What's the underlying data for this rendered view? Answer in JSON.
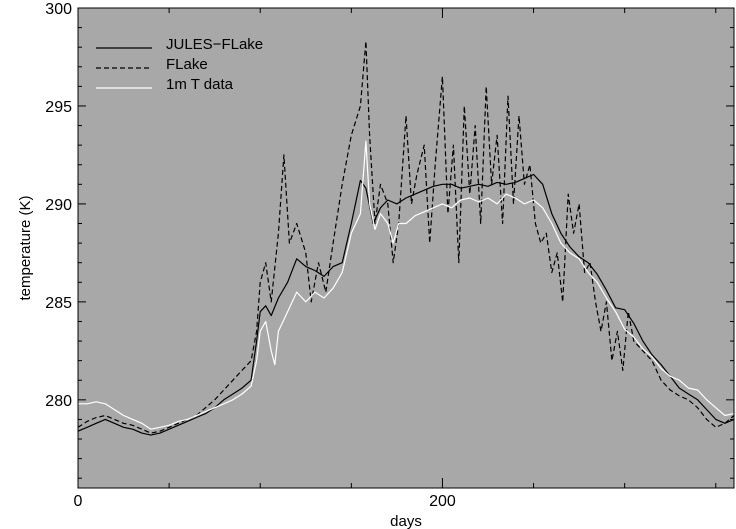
{
  "chart_data": {
    "type": "line",
    "title": "",
    "xlabel": "days",
    "ylabel": "temperature (K)",
    "xlim": [
      0,
      360
    ],
    "ylim": [
      275.5,
      300
    ],
    "x_ticks": [
      0,
      200
    ],
    "x_tick_labels": [
      "0",
      "200"
    ],
    "y_ticks": [
      280,
      285,
      290,
      295,
      300
    ],
    "y_tick_labels": [
      "280",
      "285",
      "290",
      "295",
      "300"
    ],
    "grid": false,
    "background_color": "#a8a8a8",
    "legend_position": "top-left",
    "series": [
      {
        "name": "JULES−FLake",
        "style": "solid",
        "color": "#000000",
        "points": [
          [
            0,
            278.4
          ],
          [
            5,
            278.6
          ],
          [
            10,
            278.8
          ],
          [
            15,
            279.0
          ],
          [
            20,
            278.8
          ],
          [
            25,
            278.6
          ],
          [
            30,
            278.5
          ],
          [
            35,
            278.3
          ],
          [
            40,
            278.2
          ],
          [
            45,
            278.3
          ],
          [
            50,
            278.5
          ],
          [
            55,
            278.7
          ],
          [
            60,
            278.9
          ],
          [
            65,
            279.1
          ],
          [
            70,
            279.3
          ],
          [
            75,
            279.6
          ],
          [
            80,
            280.0
          ],
          [
            85,
            280.3
          ],
          [
            90,
            280.6
          ],
          [
            95,
            281.0
          ],
          [
            98,
            283.0
          ],
          [
            100,
            284.5
          ],
          [
            103,
            284.8
          ],
          [
            106,
            284.3
          ],
          [
            110,
            285.2
          ],
          [
            115,
            286.0
          ],
          [
            120,
            287.2
          ],
          [
            125,
            286.8
          ],
          [
            130,
            286.6
          ],
          [
            135,
            286.3
          ],
          [
            140,
            286.8
          ],
          [
            145,
            287.0
          ],
          [
            150,
            289.0
          ],
          [
            155,
            291.2
          ],
          [
            158,
            290.8
          ],
          [
            162,
            289.0
          ],
          [
            166,
            289.8
          ],
          [
            170,
            290.2
          ],
          [
            175,
            290.0
          ],
          [
            180,
            290.3
          ],
          [
            185,
            290.5
          ],
          [
            190,
            290.7
          ],
          [
            195,
            290.9
          ],
          [
            200,
            291.0
          ],
          [
            205,
            291.0
          ],
          [
            210,
            290.8
          ],
          [
            215,
            290.9
          ],
          [
            220,
            291.0
          ],
          [
            225,
            290.9
          ],
          [
            230,
            291.1
          ],
          [
            235,
            291.0
          ],
          [
            240,
            291.1
          ],
          [
            245,
            291.3
          ],
          [
            250,
            291.5
          ],
          [
            255,
            291.0
          ],
          [
            260,
            289.5
          ],
          [
            265,
            288.5
          ],
          [
            270,
            287.8
          ],
          [
            275,
            287.3
          ],
          [
            280,
            287.0
          ],
          [
            285,
            286.4
          ],
          [
            290,
            285.6
          ],
          [
            295,
            284.7
          ],
          [
            300,
            284.6
          ],
          [
            305,
            283.9
          ],
          [
            310,
            283.0
          ],
          [
            315,
            282.3
          ],
          [
            320,
            281.8
          ],
          [
            325,
            281.2
          ],
          [
            330,
            280.6
          ],
          [
            335,
            280.3
          ],
          [
            340,
            280.0
          ],
          [
            345,
            279.5
          ],
          [
            350,
            279.0
          ],
          [
            355,
            278.8
          ],
          [
            360,
            279.0
          ]
        ]
      },
      {
        "name": "FLake",
        "style": "dashed",
        "color": "#000000",
        "points": [
          [
            0,
            278.6
          ],
          [
            5,
            278.9
          ],
          [
            10,
            279.1
          ],
          [
            15,
            279.2
          ],
          [
            20,
            279.0
          ],
          [
            25,
            278.8
          ],
          [
            30,
            278.7
          ],
          [
            35,
            278.5
          ],
          [
            40,
            278.3
          ],
          [
            45,
            278.4
          ],
          [
            50,
            278.6
          ],
          [
            55,
            278.8
          ],
          [
            60,
            279.0
          ],
          [
            65,
            279.2
          ],
          [
            70,
            279.6
          ],
          [
            75,
            280.0
          ],
          [
            80,
            280.5
          ],
          [
            85,
            281.0
          ],
          [
            90,
            281.5
          ],
          [
            95,
            282.0
          ],
          [
            98,
            283.5
          ],
          [
            100,
            286.0
          ],
          [
            103,
            287.0
          ],
          [
            106,
            285.0
          ],
          [
            110,
            288.5
          ],
          [
            113,
            292.5
          ],
          [
            116,
            288.0
          ],
          [
            120,
            289.0
          ],
          [
            125,
            287.5
          ],
          [
            128,
            285.0
          ],
          [
            132,
            287.0
          ],
          [
            136,
            285.5
          ],
          [
            140,
            288.0
          ],
          [
            145,
            291.0
          ],
          [
            150,
            293.5
          ],
          [
            155,
            295.0
          ],
          [
            158,
            298.3
          ],
          [
            160,
            293.5
          ],
          [
            163,
            289.0
          ],
          [
            166,
            291.0
          ],
          [
            170,
            290.0
          ],
          [
            173,
            287.0
          ],
          [
            176,
            289.0
          ],
          [
            180,
            294.5
          ],
          [
            183,
            290.0
          ],
          [
            186,
            291.5
          ],
          [
            190,
            293.0
          ],
          [
            193,
            288.0
          ],
          [
            196,
            292.0
          ],
          [
            200,
            296.5
          ],
          [
            203,
            289.5
          ],
          [
            206,
            293.0
          ],
          [
            209,
            287.0
          ],
          [
            212,
            295.0
          ],
          [
            215,
            290.5
          ],
          [
            218,
            294.0
          ],
          [
            221,
            289.0
          ],
          [
            224,
            296.0
          ],
          [
            227,
            291.0
          ],
          [
            230,
            293.5
          ],
          [
            233,
            289.0
          ],
          [
            236,
            295.5
          ],
          [
            239,
            290.0
          ],
          [
            242,
            294.5
          ],
          [
            245,
            291.0
          ],
          [
            248,
            292.0
          ],
          [
            251,
            289.0
          ],
          [
            254,
            288.0
          ],
          [
            257,
            288.5
          ],
          [
            260,
            286.5
          ],
          [
            263,
            287.5
          ],
          [
            266,
            285.0
          ],
          [
            269,
            290.5
          ],
          [
            272,
            288.5
          ],
          [
            275,
            290.0
          ],
          [
            278,
            286.5
          ],
          [
            281,
            287.0
          ],
          [
            284,
            285.0
          ],
          [
            287,
            283.5
          ],
          [
            290,
            285.0
          ],
          [
            293,
            282.0
          ],
          [
            296,
            283.5
          ],
          [
            299,
            281.5
          ],
          [
            302,
            284.5
          ],
          [
            305,
            283.0
          ],
          [
            310,
            282.5
          ],
          [
            315,
            282.0
          ],
          [
            320,
            281.0
          ],
          [
            325,
            280.5
          ],
          [
            330,
            280.2
          ],
          [
            335,
            280.0
          ],
          [
            340,
            279.6
          ],
          [
            345,
            279.0
          ],
          [
            350,
            278.6
          ],
          [
            355,
            278.8
          ],
          [
            360,
            279.2
          ]
        ]
      },
      {
        "name": "1m T data",
        "style": "solid",
        "color": "#ffffff",
        "points": [
          [
            0,
            279.8
          ],
          [
            5,
            279.8
          ],
          [
            10,
            279.9
          ],
          [
            15,
            279.8
          ],
          [
            20,
            279.5
          ],
          [
            25,
            279.2
          ],
          [
            30,
            279.0
          ],
          [
            35,
            278.8
          ],
          [
            40,
            278.5
          ],
          [
            45,
            278.6
          ],
          [
            50,
            278.7
          ],
          [
            55,
            278.9
          ],
          [
            60,
            279.0
          ],
          [
            65,
            279.2
          ],
          [
            70,
            279.4
          ],
          [
            75,
            279.6
          ],
          [
            80,
            279.8
          ],
          [
            85,
            280.0
          ],
          [
            90,
            280.3
          ],
          [
            95,
            280.7
          ],
          [
            98,
            282.0
          ],
          [
            100,
            283.5
          ],
          [
            103,
            284.0
          ],
          [
            106,
            282.5
          ],
          [
            108,
            281.8
          ],
          [
            110,
            283.5
          ],
          [
            115,
            284.5
          ],
          [
            120,
            285.5
          ],
          [
            125,
            285.0
          ],
          [
            130,
            285.5
          ],
          [
            135,
            285.2
          ],
          [
            140,
            285.7
          ],
          [
            145,
            286.5
          ],
          [
            150,
            288.5
          ],
          [
            155,
            289.5
          ],
          [
            158,
            293.2
          ],
          [
            160,
            290.0
          ],
          [
            163,
            288.7
          ],
          [
            166,
            289.5
          ],
          [
            170,
            289.0
          ],
          [
            173,
            288.0
          ],
          [
            176,
            289.0
          ],
          [
            180,
            289.0
          ],
          [
            185,
            289.4
          ],
          [
            190,
            289.6
          ],
          [
            195,
            289.8
          ],
          [
            200,
            290.0
          ],
          [
            205,
            289.8
          ],
          [
            210,
            290.2
          ],
          [
            215,
            290.3
          ],
          [
            220,
            290.1
          ],
          [
            225,
            290.3
          ],
          [
            230,
            290.0
          ],
          [
            235,
            290.5
          ],
          [
            240,
            290.3
          ],
          [
            245,
            290.0
          ],
          [
            250,
            290.2
          ],
          [
            255,
            289.8
          ],
          [
            260,
            289.0
          ],
          [
            265,
            288.0
          ],
          [
            270,
            287.5
          ],
          [
            275,
            287.2
          ],
          [
            280,
            286.5
          ],
          [
            285,
            286.0
          ],
          [
            290,
            285.2
          ],
          [
            295,
            284.5
          ],
          [
            300,
            283.6
          ],
          [
            305,
            283.2
          ],
          [
            310,
            282.6
          ],
          [
            315,
            282.2
          ],
          [
            320,
            281.6
          ],
          [
            325,
            281.2
          ],
          [
            330,
            281.0
          ],
          [
            335,
            280.6
          ],
          [
            340,
            280.5
          ],
          [
            345,
            280.0
          ],
          [
            350,
            279.6
          ],
          [
            355,
            279.2
          ],
          [
            360,
            279.3
          ]
        ]
      }
    ]
  }
}
